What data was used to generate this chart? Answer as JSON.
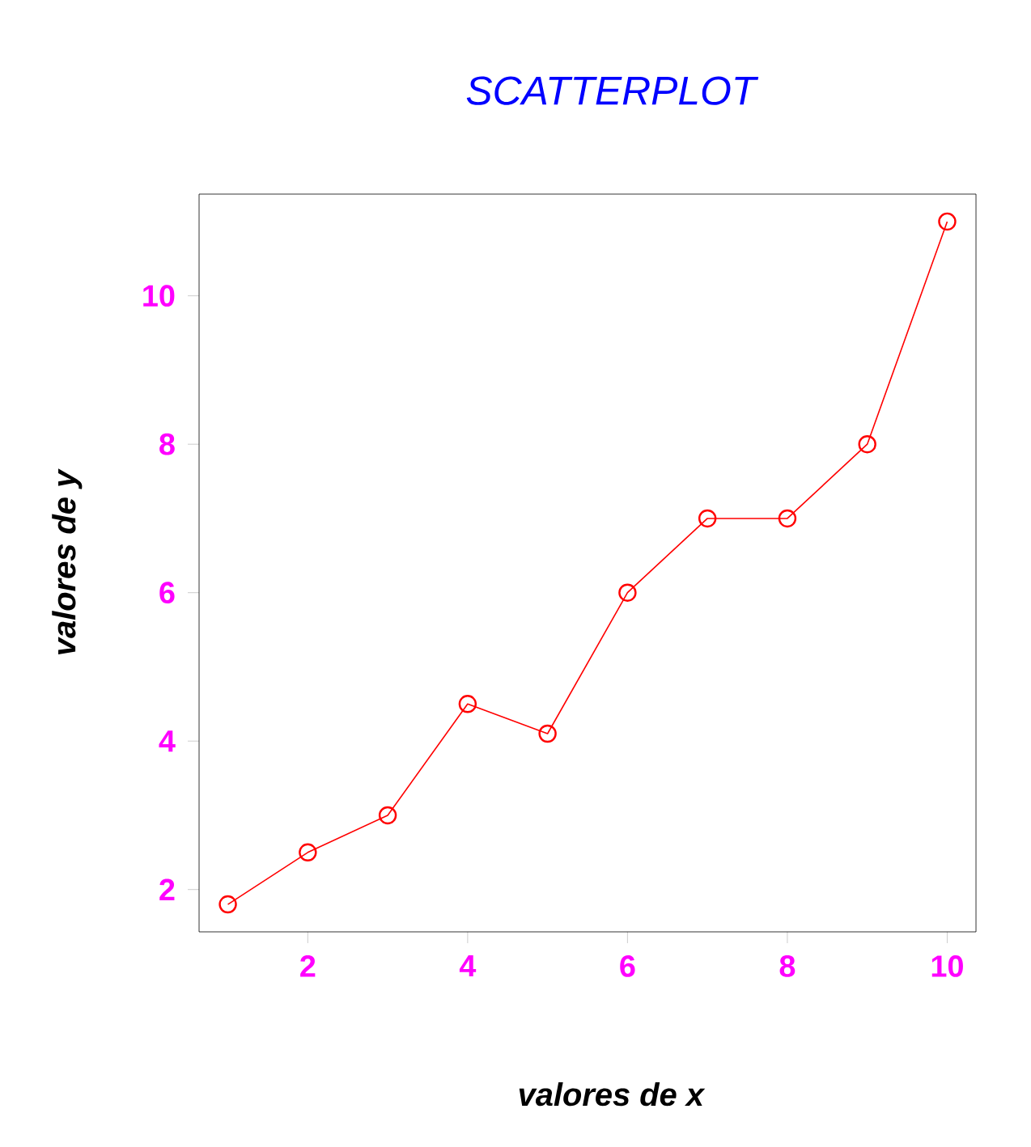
{
  "chart_data": {
    "type": "line",
    "title": "SCATTERPLOT",
    "xlabel": "valores de x",
    "ylabel": "valores de y",
    "x": [
      1,
      2,
      3,
      4,
      5,
      6,
      7,
      8,
      9,
      10
    ],
    "values": [
      1.8,
      2.5,
      3.0,
      4.5,
      4.1,
      6.0,
      7.0,
      7.0,
      8.0,
      11.0
    ],
    "color": "#ff0000",
    "marker": "circle",
    "line_style": "solid",
    "xlim": [
      0.64,
      10.36
    ],
    "ylim": [
      1.43,
      11.37
    ],
    "xticks": [
      2,
      4,
      6,
      8,
      10
    ],
    "yticks": [
      2,
      4,
      6,
      8,
      10
    ]
  }
}
